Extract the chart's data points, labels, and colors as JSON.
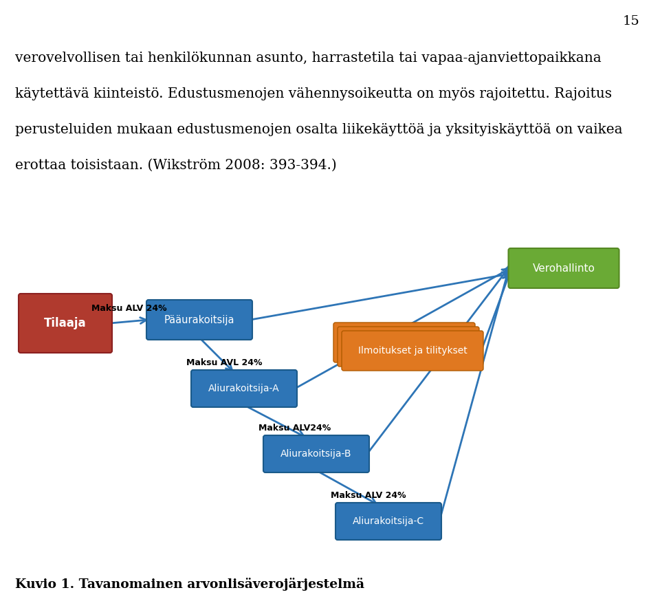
{
  "page_number": "15",
  "text_lines": [
    "verovelvollisen tai henkilökunnan asunto, harrastetila tai vapaa-ajanviettopaikkana",
    "käytettävä kiinteistö. Edustusmenojen vähennysoikeutta on myös rajoitettu. Rajoitus",
    "perusteluiden mukaan edustusmenojen osalta liikekäyttöä ja yksityiskäyttöä on vaikea",
    "erottaa toisistaan. (Wikström 2008: 393-394.)"
  ],
  "caption": "Kuvio 1. Tavanomainen arvonlisäverojärjestelmä",
  "tilaaja_color": "#b03a2e",
  "blue_color": "#2e75b6",
  "green_color": "#6aaa35",
  "orange_color": "#e07820",
  "arrow_color": "#2e75b6",
  "white": "#ffffff",
  "black": "#000000",
  "background": "#ffffff",
  "label_maksu1": "Maksu ALV 24%",
  "label_maksu2": "Maksu AVL 24%",
  "label_maksu3": "Maksu ALV24%",
  "label_maksu4": "Maksu ALV 24%",
  "ilmoitukset_text": "Ilmoitukset ja tilitykset"
}
